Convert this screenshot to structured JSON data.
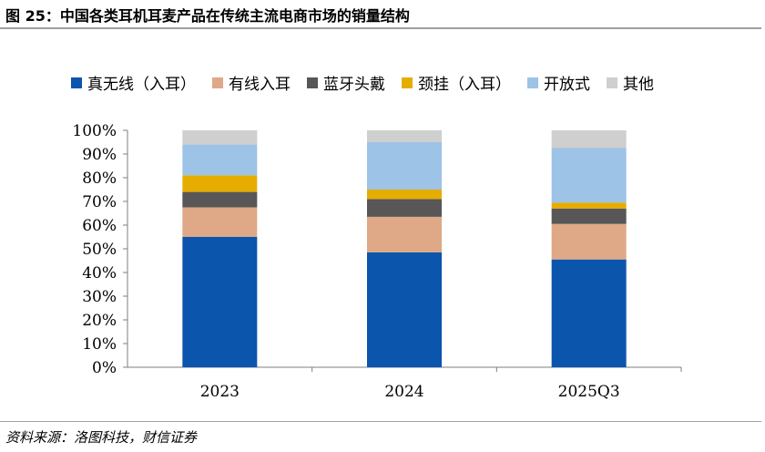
{
  "figure_title": "图 25：中国各类耳机耳麦产品在传统主流电商市场的销量结构",
  "source": "资料来源：洛图科技，财信证券",
  "chart_data": {
    "type": "bar",
    "stacked": true,
    "categories": [
      "2023",
      "2024",
      "2025Q3"
    ],
    "series": [
      {
        "name": "真无线（入耳）",
        "color": "#0b55ad",
        "values": [
          55,
          48.5,
          45.5
        ]
      },
      {
        "name": "有线入耳",
        "color": "#dfa886",
        "values": [
          12.5,
          15,
          15
        ]
      },
      {
        "name": "蓝牙头戴",
        "color": "#585656",
        "values": [
          6.5,
          7.5,
          6.5
        ]
      },
      {
        "name": "颈挂（入耳）",
        "color": "#e6ad00",
        "values": [
          7,
          4,
          2.5
        ]
      },
      {
        "name": "开放式",
        "color": "#9dc3e6",
        "values": [
          13,
          20,
          23
        ]
      },
      {
        "name": "其他",
        "color": "#cfcfcf",
        "values": [
          6,
          5,
          7.5
        ]
      }
    ],
    "ylim": [
      0,
      100
    ],
    "yticks": [
      "0%",
      "10%",
      "20%",
      "30%",
      "40%",
      "50%",
      "60%",
      "70%",
      "80%",
      "90%",
      "100%"
    ],
    "legend_position": "top",
    "grid": false
  }
}
